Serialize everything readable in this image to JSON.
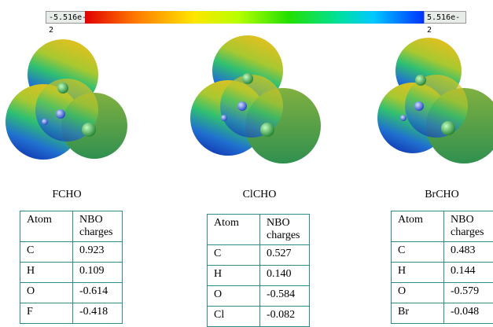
{
  "colorbar": {
    "min_label": "-5.516e-2",
    "max_label": "5.516e-2"
  },
  "molecules": [
    {
      "name": "FCHO",
      "table": {
        "header": [
          "Atom",
          "NBO charges"
        ],
        "rows": [
          [
            "C",
            "0.923"
          ],
          [
            "H",
            "0.109"
          ],
          [
            "O",
            "-0.614"
          ],
          [
            "F",
            "-0.418"
          ]
        ]
      }
    },
    {
      "name": "ClCHO",
      "table": {
        "header": [
          "Atom",
          "NBO charges"
        ],
        "rows": [
          [
            "C",
            "0.527"
          ],
          [
            "H",
            "0.140"
          ],
          [
            "O",
            "-0.584"
          ],
          [
            "Cl",
            "-0.082"
          ]
        ]
      }
    },
    {
      "name": "BrCHO",
      "table": {
        "header": [
          "Atom",
          "NBO charges"
        ],
        "rows": [
          [
            "C",
            "0.483"
          ],
          [
            "H",
            "0.144"
          ],
          [
            "O",
            "-0.579"
          ],
          [
            "Br",
            "-0.048"
          ]
        ]
      }
    }
  ]
}
